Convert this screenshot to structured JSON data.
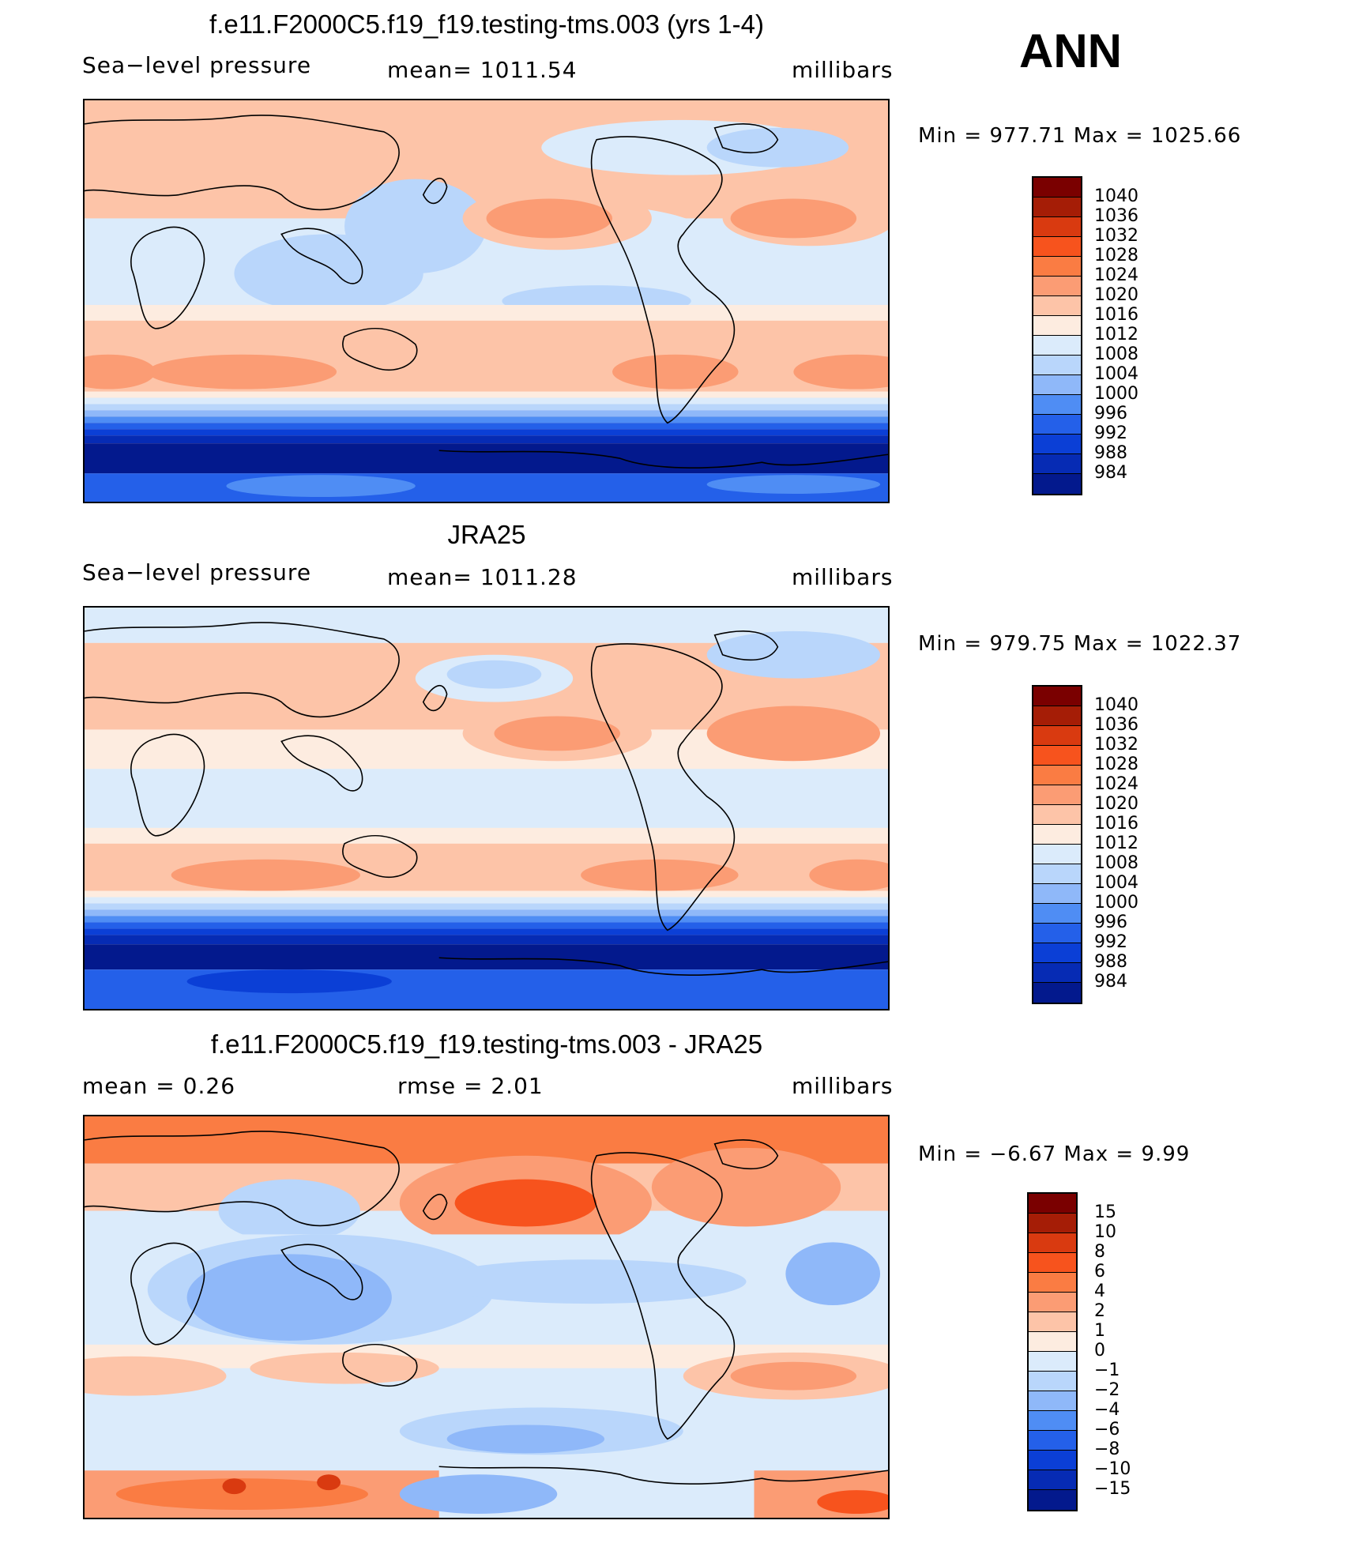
{
  "season": "ANN",
  "colors": {
    "abs_levels": [
      "#7a0000",
      "#a51d06",
      "#d93a10",
      "#f7531d",
      "#fa7c43",
      "#fb9c74",
      "#fdc4a8",
      "#fdece0",
      "#dbebfb",
      "#b9d6fb",
      "#8fb8f9",
      "#4f8df4",
      "#2460e9",
      "#0b3fd6",
      "#062bb4",
      "#03198d"
    ],
    "diff_levels": [
      "#7a0000",
      "#a51d06",
      "#d93a10",
      "#f7531d",
      "#fa7c43",
      "#fb9c74",
      "#fdc4a8",
      "#fdece0",
      "#dbebfb",
      "#b9d6fb",
      "#8fb8f9",
      "#4f8df4",
      "#2460e9",
      "#0b3fd6",
      "#062bb4",
      "#03198d"
    ]
  },
  "panels": [
    {
      "title": "f.e11.F2000C5.f19_f19.testing-tms.003 (yrs 1-4)",
      "left": "Sea−level pressure",
      "center": "mean=  1011.54",
      "right": "millibars",
      "minmax": "Min  =  977.71  Max  =  1025.66",
      "ticks": [
        "1040",
        "1036",
        "1032",
        "1028",
        "1024",
        "1020",
        "1016",
        "1012",
        "1008",
        "1004",
        "1000",
        "996",
        "992",
        "988",
        "984"
      ]
    },
    {
      "title": "JRA25",
      "left": "Sea−level pressure",
      "center": "mean=  1011.28",
      "right": "millibars",
      "minmax": "Min  =  979.75  Max  =  1022.37",
      "ticks": [
        "1040",
        "1036",
        "1032",
        "1028",
        "1024",
        "1020",
        "1016",
        "1012",
        "1008",
        "1004",
        "1000",
        "996",
        "992",
        "988",
        "984"
      ]
    },
    {
      "title": "f.e11.F2000C5.f19_f19.testing-tms.003 - JRA25",
      "left": "mean  =      0.26",
      "center": "rmse  =      2.01",
      "right": "millibars",
      "minmax": "Min  =    −6.67  Max  =      9.99",
      "ticks": [
        "15",
        "10",
        "8",
        "6",
        "4",
        "2",
        "1",
        "0",
        "−1",
        "−2",
        "−4",
        "−6",
        "−8",
        "−10",
        "−15"
      ]
    }
  ]
}
